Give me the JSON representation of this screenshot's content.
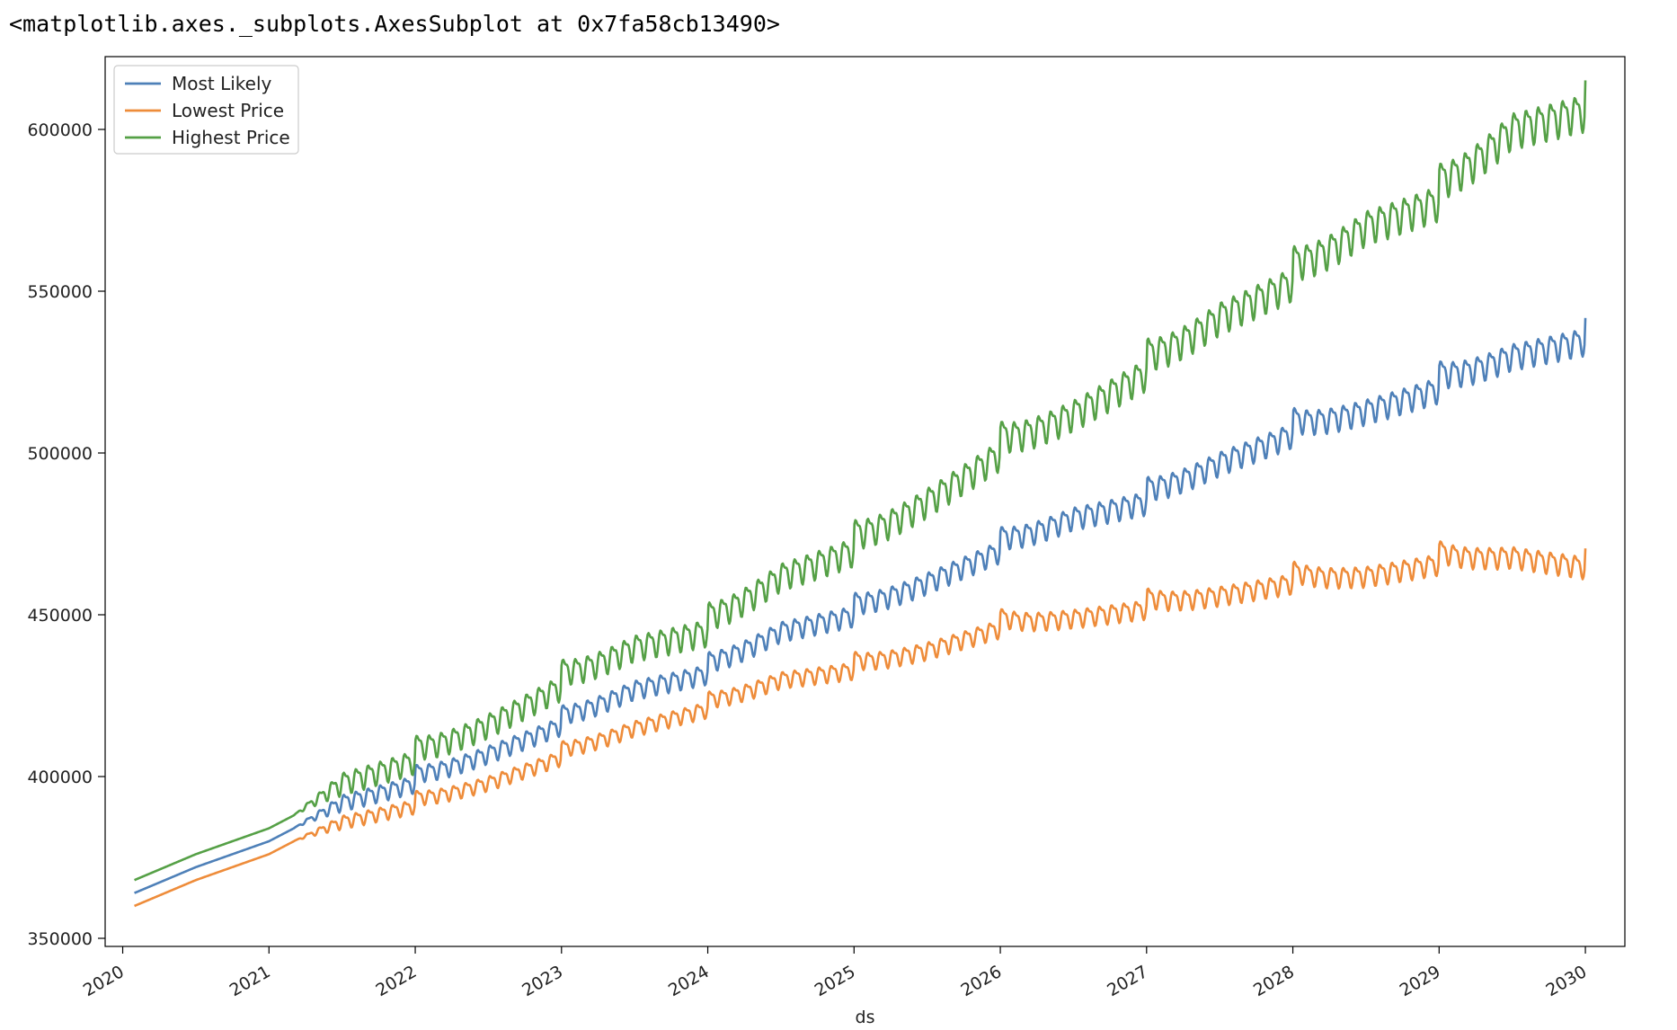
{
  "output_repr": "<matplotlib.axes._subplots.AxesSubplot at 0x7fa58cb13490>",
  "chart_data": {
    "type": "line",
    "title": "",
    "xlabel": "ds",
    "ylabel": "",
    "xlim": [
      2019.88,
      2030.27
    ],
    "ylim": [
      347500,
      622500
    ],
    "x_ticks": [
      2020,
      2021,
      2022,
      2023,
      2024,
      2025,
      2026,
      2027,
      2028,
      2029,
      2030
    ],
    "x_tick_labels": [
      "2020",
      "2021",
      "2022",
      "2023",
      "2024",
      "2025",
      "2026",
      "2027",
      "2028",
      "2029",
      "2030"
    ],
    "y_ticks": [
      350000,
      400000,
      450000,
      500000,
      550000,
      600000
    ],
    "y_tick_labels": [
      "350000",
      "400000",
      "450000",
      "500000",
      "550000",
      "600000"
    ],
    "grid": false,
    "legend_position": "top-left",
    "x": [
      2020.08,
      2020.5,
      2021.0,
      2021.17,
      2021.5,
      2022.0,
      2022.5,
      2023.0,
      2023.5,
      2024.0,
      2024.5,
      2025.0,
      2025.5,
      2026.0,
      2026.5,
      2027.0,
      2027.5,
      2028.0,
      2028.5,
      2029.0,
      2029.5,
      2030.0
    ],
    "series": [
      {
        "name": "Most Likely",
        "color": "#4e80b8",
        "values": [
          364000,
          372000,
          380000,
          384000,
          392000,
          398000,
          407000,
          416000,
          427000,
          432000,
          445000,
          450000,
          460000,
          470000,
          480000,
          485000,
          497000,
          506000,
          513000,
          520000,
          530000,
          535000
        ]
      },
      {
        "name": "Lowest Price",
        "color": "#ee8c3a",
        "values": [
          360000,
          368000,
          376000,
          380000,
          386000,
          391000,
          398000,
          406000,
          415000,
          421000,
          430000,
          433000,
          439000,
          446000,
          449000,
          452000,
          456000,
          460000,
          462000,
          466000,
          468000,
          465000
        ]
      },
      {
        "name": "Highest Price",
        "color": "#55a046",
        "values": [
          368000,
          376000,
          384000,
          388000,
          398000,
          405000,
          416000,
          428000,
          440000,
          445000,
          462000,
          470000,
          485000,
          500000,
          512000,
          525000,
          542000,
          553000,
          570000,
          578000,
          600000,
          606000
        ]
      }
    ]
  }
}
